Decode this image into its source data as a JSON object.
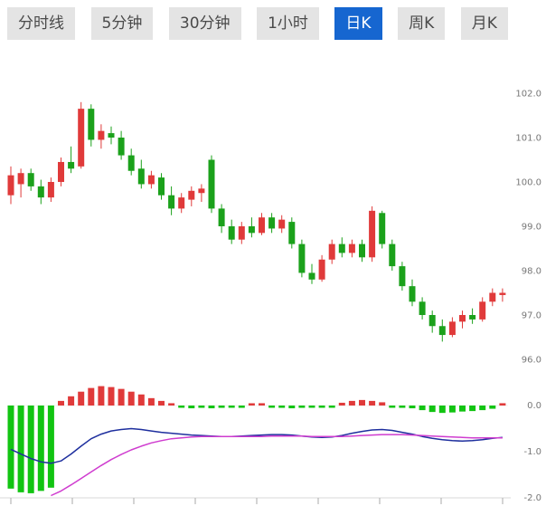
{
  "tabs": {
    "active_index": 4,
    "items": [
      {
        "label": "分时线"
      },
      {
        "label": "5分钟"
      },
      {
        "label": "30分钟"
      },
      {
        "label": "1小时"
      },
      {
        "label": "日K"
      },
      {
        "label": "周K"
      },
      {
        "label": "月K"
      }
    ]
  },
  "chart_data": {
    "type": "candlestick",
    "title": "",
    "legend": "none",
    "grid": "off",
    "price_axis": {
      "side": "right",
      "labels": [
        "102.0",
        "101.0",
        "100.0",
        "99.0",
        "98.0",
        "97.0",
        "96.0"
      ],
      "values": [
        102,
        101,
        100,
        99,
        98,
        97,
        96
      ]
    },
    "macd_axis": {
      "side": "right",
      "labels": [
        "0.0",
        "-1.0",
        "-2.0"
      ],
      "values": [
        0,
        -1,
        -2
      ]
    },
    "candles_ohlc": [
      [
        99.7,
        100.35,
        99.5,
        100.15
      ],
      [
        99.95,
        100.3,
        99.65,
        100.2
      ],
      [
        100.2,
        100.3,
        99.8,
        99.9
      ],
      [
        99.9,
        100.05,
        99.5,
        99.65
      ],
      [
        99.65,
        100.1,
        99.55,
        100.0
      ],
      [
        100.0,
        100.55,
        99.9,
        100.45
      ],
      [
        100.45,
        100.8,
        100.2,
        100.3
      ],
      [
        100.35,
        101.8,
        100.3,
        101.65
      ],
      [
        101.65,
        101.75,
        100.8,
        100.95
      ],
      [
        100.95,
        101.3,
        100.75,
        101.15
      ],
      [
        101.1,
        101.25,
        100.85,
        101.0
      ],
      [
        101.0,
        101.15,
        100.5,
        100.6
      ],
      [
        100.6,
        100.75,
        100.15,
        100.25
      ],
      [
        100.3,
        100.5,
        99.85,
        99.95
      ],
      [
        99.95,
        100.25,
        99.85,
        100.15
      ],
      [
        100.1,
        100.2,
        99.6,
        99.7
      ],
      [
        99.7,
        99.9,
        99.25,
        99.4
      ],
      [
        99.4,
        99.75,
        99.3,
        99.65
      ],
      [
        99.6,
        99.9,
        99.45,
        99.8
      ],
      [
        99.75,
        99.95,
        99.55,
        99.85
      ],
      [
        100.5,
        100.6,
        99.3,
        99.4
      ],
      [
        99.4,
        99.5,
        98.85,
        99.0
      ],
      [
        99.0,
        99.15,
        98.6,
        98.7
      ],
      [
        98.7,
        99.1,
        98.6,
        99.0
      ],
      [
        99.0,
        99.2,
        98.75,
        98.85
      ],
      [
        98.85,
        99.3,
        98.8,
        99.2
      ],
      [
        99.2,
        99.3,
        98.85,
        98.95
      ],
      [
        98.95,
        99.25,
        98.85,
        99.15
      ],
      [
        99.1,
        99.2,
        98.5,
        98.6
      ],
      [
        98.6,
        98.7,
        97.85,
        97.95
      ],
      [
        97.95,
        98.15,
        97.7,
        97.8
      ],
      [
        97.8,
        98.35,
        97.75,
        98.25
      ],
      [
        98.25,
        98.7,
        98.15,
        98.6
      ],
      [
        98.6,
        98.75,
        98.3,
        98.4
      ],
      [
        98.4,
        98.7,
        98.3,
        98.6
      ],
      [
        98.6,
        98.7,
        98.2,
        98.3
      ],
      [
        98.3,
        99.45,
        98.2,
        99.35
      ],
      [
        99.3,
        99.35,
        98.5,
        98.6
      ],
      [
        98.6,
        98.7,
        98.0,
        98.1
      ],
      [
        98.1,
        98.2,
        97.55,
        97.65
      ],
      [
        97.65,
        97.8,
        97.2,
        97.3
      ],
      [
        97.3,
        97.4,
        96.9,
        97.0
      ],
      [
        97.0,
        97.1,
        96.6,
        96.75
      ],
      [
        96.75,
        96.9,
        96.4,
        96.55
      ],
      [
        96.55,
        96.95,
        96.5,
        96.85
      ],
      [
        96.85,
        97.1,
        96.7,
        97.0
      ],
      [
        97.0,
        97.15,
        96.8,
        96.9
      ],
      [
        96.9,
        97.4,
        96.85,
        97.3
      ],
      [
        97.3,
        97.6,
        97.2,
        97.5
      ],
      [
        97.45,
        97.6,
        97.3,
        97.5
      ]
    ],
    "macd": {
      "histogram": [
        -1.8,
        -1.88,
        -1.9,
        -1.85,
        -1.78,
        0.1,
        0.2,
        0.3,
        0.38,
        0.42,
        0.4,
        0.36,
        0.3,
        0.24,
        0.16,
        0.1,
        0.05,
        -0.04,
        -0.06,
        -0.05,
        -0.06,
        -0.05,
        -0.04,
        -0.05,
        0.04,
        0.05,
        -0.04,
        -0.05,
        -0.06,
        -0.05,
        -0.04,
        -0.03,
        -0.04,
        0.06,
        0.1,
        0.12,
        0.1,
        0.07,
        -0.04,
        -0.05,
        -0.06,
        -0.1,
        -0.14,
        -0.16,
        -0.15,
        -0.13,
        -0.12,
        -0.1,
        -0.07,
        0.05
      ],
      "dif": [
        -0.95,
        -1.05,
        -1.15,
        -1.22,
        -1.25,
        -1.2,
        -1.05,
        -0.88,
        -0.72,
        -0.62,
        -0.55,
        -0.52,
        -0.5,
        -0.52,
        -0.55,
        -0.58,
        -0.6,
        -0.62,
        -0.64,
        -0.65,
        -0.66,
        -0.67,
        -0.67,
        -0.66,
        -0.65,
        -0.64,
        -0.63,
        -0.63,
        -0.64,
        -0.66,
        -0.68,
        -0.69,
        -0.68,
        -0.65,
        -0.6,
        -0.56,
        -0.53,
        -0.52,
        -0.54,
        -0.58,
        -0.62,
        -0.67,
        -0.71,
        -0.74,
        -0.76,
        -0.77,
        -0.76,
        -0.74,
        -0.71,
        -0.69
      ],
      "dea": [
        null,
        null,
        null,
        null,
        -1.95,
        -1.85,
        -1.72,
        -1.58,
        -1.44,
        -1.3,
        -1.17,
        -1.06,
        -0.96,
        -0.88,
        -0.81,
        -0.76,
        -0.72,
        -0.7,
        -0.68,
        -0.67,
        -0.67,
        -0.67,
        -0.67,
        -0.67,
        -0.67,
        -0.67,
        -0.66,
        -0.66,
        -0.66,
        -0.66,
        -0.67,
        -0.67,
        -0.67,
        -0.67,
        -0.66,
        -0.65,
        -0.64,
        -0.63,
        -0.63,
        -0.63,
        -0.64,
        -0.65,
        -0.66,
        -0.67,
        -0.68,
        -0.69,
        -0.7,
        -0.7,
        -0.7,
        -0.7
      ]
    },
    "colors": {
      "up_candle": "#e03a3a",
      "down_candle": "#1ba11b",
      "macd_up_bar": "#e03a3a",
      "macd_down_bar": "#12c412",
      "dif_line": "#1e2f9e",
      "dea_line": "#cf3ccf",
      "axis_text": "#777777",
      "tab_bg": "#e4e4e4",
      "tab_text": "#4a4a4a",
      "tab_active_bg": "#1666d0",
      "tab_active_text": "#ffffff"
    }
  }
}
